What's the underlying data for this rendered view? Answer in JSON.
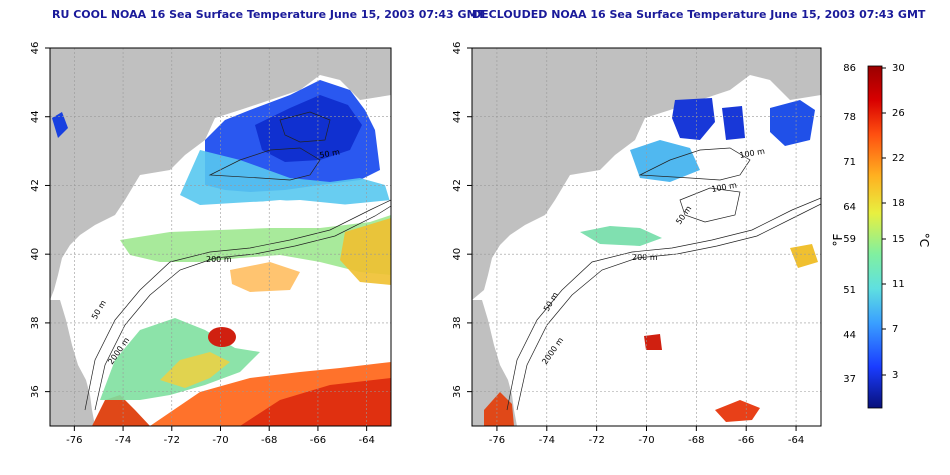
{
  "panels": [
    {
      "id": "left",
      "title": "RU COOL NOAA 16 Sea Surface Temperature June 15, 2003 07:43 GMT",
      "contour_labels": [
        "50 m",
        "200 m",
        "50 m",
        "2000 m"
      ]
    },
    {
      "id": "right",
      "title": "DECLOUDED NOAA 16 Sea Surface Temperature June 15, 2003 07:43 GMT",
      "contour_labels": [
        "100 m",
        "100 m",
        "50 m",
        "200 m",
        "50 m",
        "2000 m"
      ]
    }
  ],
  "axes": {
    "lon_ticks": [
      "-76",
      "-74",
      "-72",
      "-70",
      "-68",
      "-66",
      "-64"
    ],
    "lat_ticks": [
      "36",
      "38",
      "40",
      "42",
      "44",
      "46"
    ],
    "lon_range": [
      -77,
      -63
    ],
    "lat_range": [
      35,
      46
    ]
  },
  "colorbar": {
    "fahrenheit_ticks": [
      "86",
      "78",
      "71",
      "64",
      "59",
      "51",
      "44",
      "37"
    ],
    "celsius_ticks": [
      "30",
      "26",
      "22",
      "18",
      "15",
      "11",
      "7",
      "3"
    ],
    "fahrenheit_label": "°F",
    "celsius_label": "°C",
    "colors": [
      "#08107a",
      "#1a3cff",
      "#3aa0ff",
      "#5fe0e0",
      "#80f0a0",
      "#e8f040",
      "#ffb020",
      "#ff5010",
      "#d80000",
      "#9a0000"
    ]
  },
  "colors": {
    "land": "#c0c0c0",
    "cloud_white": "#ffffff",
    "grid": "#999999",
    "title": "#1a1a9a"
  }
}
